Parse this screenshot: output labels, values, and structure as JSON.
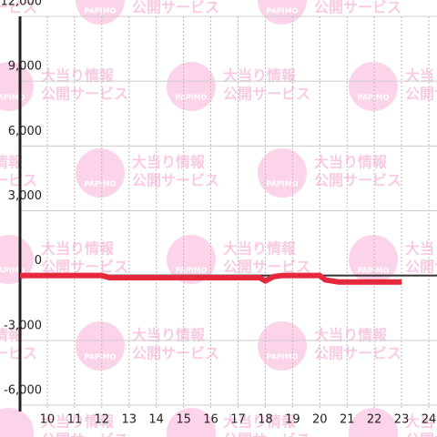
{
  "chart_data": {
    "type": "line",
    "x": [
      9,
      12,
      12.3,
      17.8,
      18,
      18.3,
      18.6,
      20,
      20.2,
      20.7,
      23
    ],
    "series": [
      {
        "color": "#e5283c",
        "values": [
          0,
          0,
          -100,
          -100,
          -250,
          -50,
          0,
          0,
          -200,
          -300,
          -300
        ]
      }
    ],
    "xlim": [
      9,
      24.3
    ],
    "xticks": [
      10,
      11,
      12,
      13,
      14,
      15,
      16,
      17,
      18,
      19,
      20,
      21,
      22,
      23,
      24
    ],
    "ylim": [
      -6000,
      12000
    ],
    "yticks": [
      {
        "value": -6000,
        "label": "-6,000"
      },
      {
        "value": -3000,
        "label": "-3,000"
      },
      0,
      {
        "value": 3000,
        "label": "3,000"
      },
      {
        "value": 6000,
        "label": "6,000"
      },
      {
        "value": 9000,
        "label": "9,000"
      },
      {
        "value": 12000,
        "label": "12,000"
      }
    ],
    "grid": true
  },
  "watermark": {
    "line1": "大当り情報",
    "line2": "公開サービス",
    "logo": "PAPIMO"
  }
}
